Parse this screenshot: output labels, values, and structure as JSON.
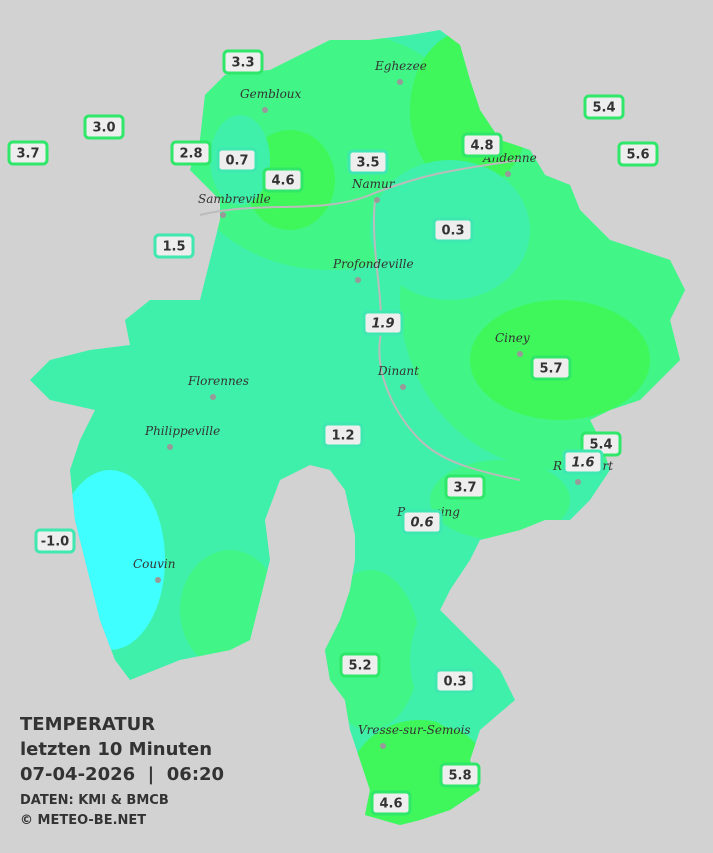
{
  "legend": {
    "title": "TEMPERATUR",
    "period": "letzten 10 Minuten",
    "datetime": "07-04-2026  |  06:20",
    "source": "DATEN: KMI & BMCB",
    "copyright": "© METEO-BE.NET"
  },
  "cities": [
    "Eghezee",
    "Gembloux",
    "Andenne",
    "Namur",
    "Sambreville",
    "Profondeville",
    "Ciney",
    "Dinant",
    "Florennes",
    "Philippeville",
    "Rochefort",
    "Beauraing",
    "Couvin",
    "Vresse-sur-Semois"
  ],
  "stations": [
    "3.3",
    "3.0",
    "3.7",
    "2.8",
    "0.7",
    "4.6",
    "3.5",
    "4.8",
    "5.4",
    "5.6",
    "0.3",
    "1.5",
    "1.9",
    "5.7",
    "1.2",
    "5.4",
    "1.6",
    "3.7",
    "0.6",
    "-1.0",
    "5.2",
    "0.3",
    "5.8",
    "4.6"
  ]
}
